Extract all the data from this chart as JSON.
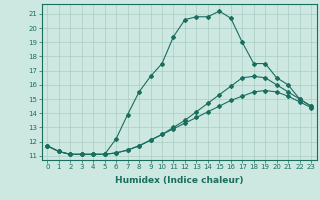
{
  "xlabel": "Humidex (Indice chaleur)",
  "bg_color": "#cce8e0",
  "line_color": "#1a6e60",
  "grid_color": "#aaccc4",
  "xlim": [
    -0.5,
    23.5
  ],
  "ylim": [
    10.7,
    21.7
  ],
  "yticks": [
    11,
    12,
    13,
    14,
    15,
    16,
    17,
    18,
    19,
    20,
    21
  ],
  "xticks": [
    0,
    1,
    2,
    3,
    4,
    5,
    6,
    7,
    8,
    9,
    10,
    11,
    12,
    13,
    14,
    15,
    16,
    17,
    18,
    19,
    20,
    21,
    22,
    23
  ],
  "line1_x": [
    0,
    1,
    2,
    3,
    4,
    5,
    6,
    7,
    8,
    9,
    10,
    11,
    12,
    13,
    14,
    15,
    16,
    17,
    18,
    19,
    20,
    21,
    22,
    23
  ],
  "line1_y": [
    11.7,
    11.3,
    11.1,
    11.1,
    11.1,
    11.1,
    12.2,
    13.9,
    15.5,
    16.6,
    17.5,
    19.4,
    20.6,
    20.8,
    20.8,
    21.2,
    20.7,
    19.0,
    17.5,
    17.5,
    16.5,
    16.0,
    15.0,
    14.5
  ],
  "line2_x": [
    0,
    1,
    2,
    3,
    4,
    5,
    6,
    7,
    8,
    9,
    10,
    11,
    12,
    13,
    14,
    15,
    16,
    17,
    18,
    19,
    20,
    21,
    22,
    23
  ],
  "line2_y": [
    11.7,
    11.3,
    11.1,
    11.1,
    11.1,
    11.1,
    11.2,
    11.4,
    11.7,
    12.1,
    12.5,
    13.0,
    13.5,
    14.1,
    14.7,
    15.3,
    15.9,
    16.5,
    16.6,
    16.5,
    16.0,
    15.5,
    15.0,
    14.5
  ],
  "line3_x": [
    0,
    1,
    2,
    3,
    4,
    5,
    6,
    7,
    8,
    9,
    10,
    11,
    12,
    13,
    14,
    15,
    16,
    17,
    18,
    19,
    20,
    21,
    22,
    23
  ],
  "line3_y": [
    11.7,
    11.3,
    11.1,
    11.1,
    11.1,
    11.1,
    11.2,
    11.4,
    11.7,
    12.1,
    12.5,
    12.9,
    13.3,
    13.7,
    14.1,
    14.5,
    14.9,
    15.2,
    15.5,
    15.6,
    15.5,
    15.2,
    14.8,
    14.4
  ],
  "marker": "D",
  "marker_size": 2.0,
  "line_width": 0.8,
  "tick_fontsize": 5.0,
  "xlabel_fontsize": 6.5
}
